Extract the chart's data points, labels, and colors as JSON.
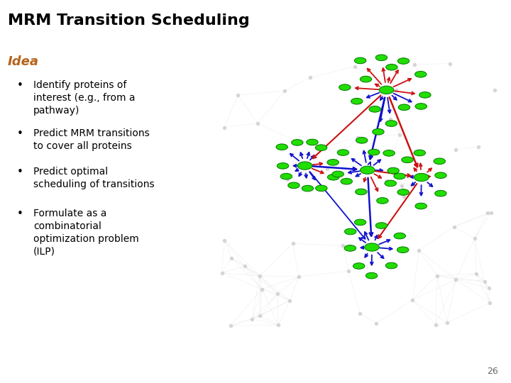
{
  "title": "MRM Transition Scheduling",
  "title_fontsize": 16,
  "title_fontweight": "bold",
  "title_color": "#000000",
  "subtitle": "Idea",
  "subtitle_color": "#B5651D",
  "subtitle_fontsize": 13,
  "subtitle_fontweight": "bold",
  "bullets": [
    "Identify proteins of\ninterest (e.g., from a\npathway)",
    "Predict MRM transitions\nto cover all proteins",
    "Predict optimal\nscheduling of transitions",
    "Formulate as a\ncombinatorial\noptimization problem\n(ILP)"
  ],
  "bullet_fontsize": 10,
  "page_number": "26",
  "bg_color": "#FFFFFF",
  "node_green": "#22DD00",
  "node_green_edge": "#007700",
  "edge_blue": "#1111CC",
  "edge_red": "#CC1111",
  "edge_gray": "#BBBBBB",
  "gray_node": "#CCCCCC"
}
